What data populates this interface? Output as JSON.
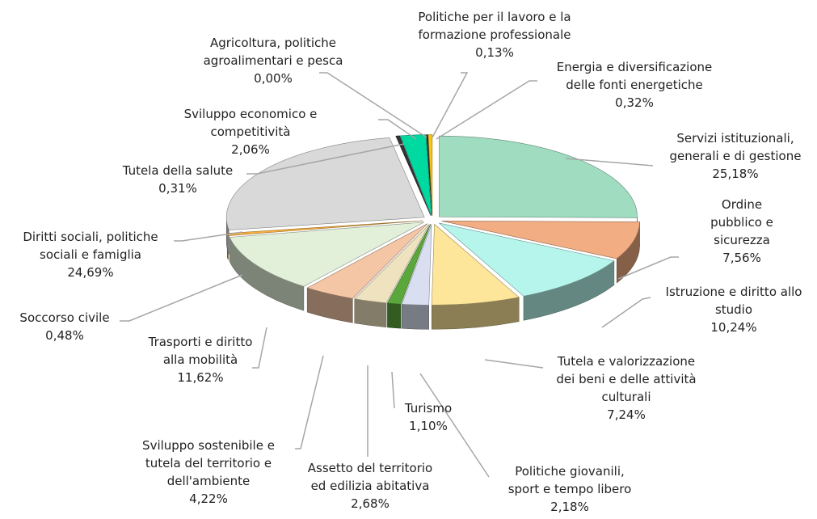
{
  "chart_data": {
    "type": "pie",
    "categories": [
      "Servizi istituzionali,\ngenerali e di gestione",
      "Ordine\npubblico e\nsicurezza",
      "Istruzione e diritto allo\nstudio",
      "Tutela e valorizzazione\ndei beni e delle attività\nculturali",
      "Politiche giovanili,\nsport e tempo libero",
      "Turismo",
      "Assetto del territorio\ned edilizia abitativa",
      "Sviluppo sostenibile e\ntutela del territorio e\ndell'ambiente",
      "Trasporti e diritto\nalla mobilità",
      "Soccorso civile",
      "Diritti sociali, politiche\nsociali e famiglia",
      "Tutela della salute",
      "Sviluppo economico e competitività",
      "Agricoltura, politiche\nagroalimentari e pesca",
      "Politiche per il lavoro e la\nformazione professionale",
      "Energia e diversificazione\ndelle fonti energetiche"
    ],
    "values": [
      25.18,
      7.56,
      10.24,
      7.24,
      2.18,
      1.1,
      2.68,
      4.22,
      11.62,
      0.48,
      24.69,
      0.31,
      2.06,
      0.0,
      0.13,
      0.32
    ],
    "value_labels": [
      "25,18%",
      "7,56%",
      "10,24%",
      "7,24%",
      "2,18%",
      "1,10%",
      "2,68%",
      "4,22%",
      "11,62%",
      "0,48%",
      "24,69%",
      "0,31%",
      "2,06%",
      "0,00%",
      "0,13%",
      "0,32%"
    ],
    "colors": [
      "#9fdcc0",
      "#f2ad82",
      "#b6f5ec",
      "#fde59a",
      "#d9dff0",
      "#5aa83c",
      "#eee2bf",
      "#f5c6a5",
      "#e2efd9",
      "#f7b040",
      "#d9d9d9",
      "#333333",
      "#00d9a0",
      "#888888",
      "#333333",
      "#f5c518"
    ]
  }
}
